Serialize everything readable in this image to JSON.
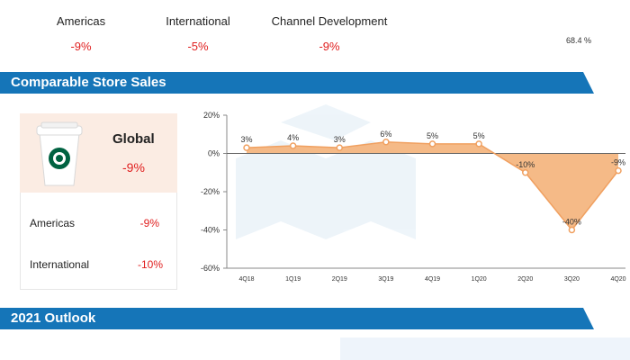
{
  "segments": [
    {
      "name": "Americas",
      "value": "-9%"
    },
    {
      "name": "International",
      "value": "-5%"
    },
    {
      "name": "Channel Development",
      "value": "-9%"
    }
  ],
  "pie": {
    "label": "68.4 %"
  },
  "sections": {
    "comparable": "Comparable Store Sales",
    "outlook": "2021 Outlook"
  },
  "global": {
    "name": "Global",
    "value": "-9%"
  },
  "regions": [
    {
      "name": "Americas",
      "value": "-9%"
    },
    {
      "name": "International",
      "value": "-10%"
    }
  ],
  "colors": {
    "band": "#1575b8",
    "area": "#f4b27a",
    "line": "#f0a060",
    "negative": "#e02020"
  },
  "chart_data": {
    "type": "area",
    "categories": [
      "4Q18",
      "1Q19",
      "2Q19",
      "3Q19",
      "4Q19",
      "1Q20",
      "2Q20",
      "3Q20",
      "4Q20"
    ],
    "values": [
      3,
      4,
      3,
      6,
      5,
      5,
      -10,
      -40,
      -9
    ],
    "data_labels": [
      "3%",
      "4%",
      "3%",
      "6%",
      "5%",
      "5%",
      "-10%",
      "-40%",
      "-9%"
    ],
    "y_ticks": [
      20,
      0,
      -20,
      -40,
      -60
    ],
    "y_tick_labels": [
      "20%",
      "0%",
      "-20%",
      "-40%",
      "-60%"
    ],
    "ylim": [
      -60,
      20
    ],
    "title": "",
    "xlabel": "",
    "ylabel": ""
  }
}
